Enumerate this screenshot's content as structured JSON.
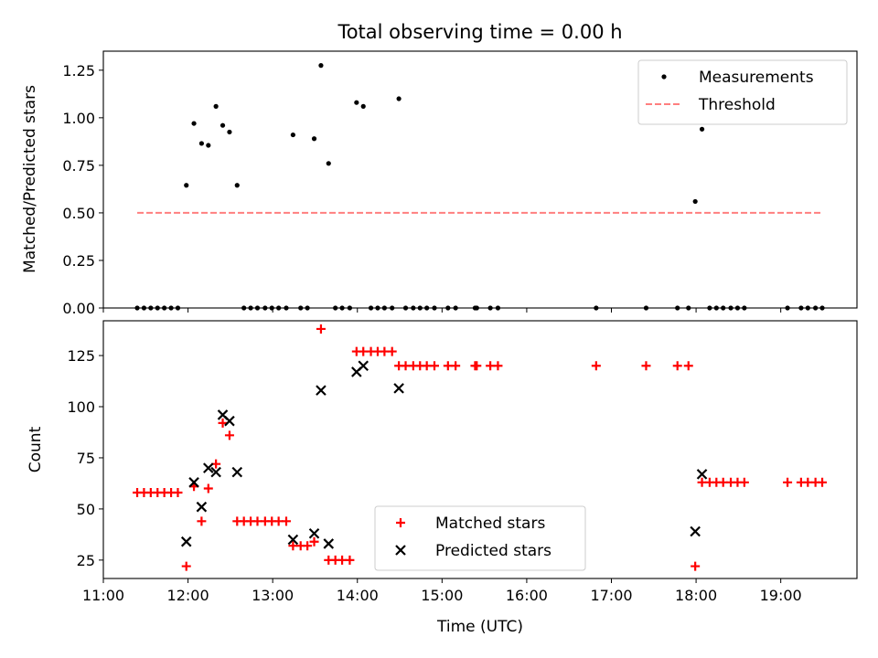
{
  "chart_data": [
    {
      "type": "scatter",
      "title": "Total observing time = 0.00 h",
      "xlabel": "",
      "ylabel": "Matched/Predicted stars",
      "xlim": [
        11.0,
        19.9
      ],
      "ylim": [
        0.0,
        1.35
      ],
      "yticks": [
        0.0,
        0.25,
        0.5,
        0.75,
        1.0,
        1.25
      ],
      "ytick_labels": [
        "0.00",
        "0.25",
        "0.50",
        "0.75",
        "1.00",
        "1.25"
      ],
      "legend_position": "top-right",
      "series": [
        {
          "name": "Measurements",
          "color": "#000000",
          "marker": "dot",
          "points": [
            [
              11.4,
              0
            ],
            [
              11.48,
              0
            ],
            [
              11.56,
              0
            ],
            [
              11.64,
              0
            ],
            [
              11.72,
              0
            ],
            [
              11.8,
              0
            ],
            [
              11.88,
              0
            ],
            [
              11.98,
              0.645
            ],
            [
              12.07,
              0.97
            ],
            [
              12.16,
              0.865
            ],
            [
              12.24,
              0.855
            ],
            [
              12.33,
              1.06
            ],
            [
              12.41,
              0.96
            ],
            [
              12.49,
              0.925
            ],
            [
              12.58,
              0.645
            ],
            [
              12.66,
              0
            ],
            [
              12.74,
              0
            ],
            [
              12.82,
              0
            ],
            [
              12.91,
              0
            ],
            [
              12.99,
              0
            ],
            [
              13.07,
              0
            ],
            [
              13.16,
              0
            ],
            [
              13.24,
              0.91
            ],
            [
              13.33,
              0
            ],
            [
              13.41,
              0
            ],
            [
              13.49,
              0.89
            ],
            [
              13.57,
              1.275
            ],
            [
              13.66,
              0.76
            ],
            [
              13.74,
              0
            ],
            [
              13.82,
              0
            ],
            [
              13.91,
              0
            ],
            [
              13.99,
              1.08
            ],
            [
              14.07,
              1.06
            ],
            [
              14.16,
              0
            ],
            [
              14.24,
              0
            ],
            [
              14.32,
              0
            ],
            [
              14.41,
              0
            ],
            [
              14.49,
              1.1
            ],
            [
              14.57,
              0
            ],
            [
              14.66,
              0
            ],
            [
              14.74,
              0
            ],
            [
              14.82,
              0
            ],
            [
              14.91,
              0
            ],
            [
              15.07,
              0
            ],
            [
              15.16,
              0
            ],
            [
              15.39,
              0
            ],
            [
              15.41,
              0
            ],
            [
              15.57,
              0
            ],
            [
              15.66,
              0
            ],
            [
              16.82,
              0
            ],
            [
              17.41,
              0
            ],
            [
              17.78,
              0
            ],
            [
              17.91,
              0
            ],
            [
              17.99,
              0.56
            ],
            [
              18.07,
              0.94
            ],
            [
              18.16,
              0
            ],
            [
              18.24,
              0
            ],
            [
              18.32,
              0
            ],
            [
              18.41,
              0
            ],
            [
              18.49,
              0
            ],
            [
              18.57,
              0
            ],
            [
              19.08,
              0
            ],
            [
              19.24,
              0
            ],
            [
              19.32,
              0
            ],
            [
              19.41,
              0
            ],
            [
              19.49,
              0
            ]
          ]
        },
        {
          "name": "Threshold",
          "color": "#ff7f7f",
          "style": "dashed",
          "points": [
            [
              11.4,
              0.5
            ],
            [
              19.5,
              0.5
            ]
          ]
        }
      ]
    },
    {
      "type": "scatter",
      "title": "",
      "xlabel": "Time (UTC)",
      "ylabel": "Count",
      "xlim": [
        11.0,
        19.9
      ],
      "ylim": [
        16,
        142
      ],
      "yticks": [
        25,
        50,
        75,
        100,
        125
      ],
      "ytick_labels": [
        "25",
        "50",
        "75",
        "100",
        "125"
      ],
      "xticks": [
        11,
        12,
        13,
        14,
        15,
        16,
        17,
        18,
        19
      ],
      "xtick_labels": [
        "11:00",
        "12:00",
        "13:00",
        "14:00",
        "15:00",
        "16:00",
        "17:00",
        "18:00",
        "19:00"
      ],
      "legend_position": "lower-center",
      "series": [
        {
          "name": "Matched stars",
          "color": "#ff0000",
          "marker": "plus",
          "points": [
            [
              11.4,
              58
            ],
            [
              11.48,
              58
            ],
            [
              11.56,
              58
            ],
            [
              11.64,
              58
            ],
            [
              11.72,
              58
            ],
            [
              11.8,
              58
            ],
            [
              11.88,
              58
            ],
            [
              11.98,
              22
            ],
            [
              12.07,
              61
            ],
            [
              12.16,
              44
            ],
            [
              12.24,
              60
            ],
            [
              12.33,
              72
            ],
            [
              12.41,
              92
            ],
            [
              12.49,
              86
            ],
            [
              12.58,
              44
            ],
            [
              12.66,
              44
            ],
            [
              12.74,
              44
            ],
            [
              12.82,
              44
            ],
            [
              12.91,
              44
            ],
            [
              12.99,
              44
            ],
            [
              13.07,
              44
            ],
            [
              13.16,
              44
            ],
            [
              13.24,
              32
            ],
            [
              13.33,
              32
            ],
            [
              13.41,
              32
            ],
            [
              13.49,
              34
            ],
            [
              13.57,
              138
            ],
            [
              13.66,
              25
            ],
            [
              13.74,
              25
            ],
            [
              13.82,
              25
            ],
            [
              13.91,
              25
            ],
            [
              13.99,
              127
            ],
            [
              14.07,
              127
            ],
            [
              14.16,
              127
            ],
            [
              14.24,
              127
            ],
            [
              14.32,
              127
            ],
            [
              14.41,
              127
            ],
            [
              14.49,
              120
            ],
            [
              14.57,
              120
            ],
            [
              14.66,
              120
            ],
            [
              14.74,
              120
            ],
            [
              14.82,
              120
            ],
            [
              14.91,
              120
            ],
            [
              15.07,
              120
            ],
            [
              15.16,
              120
            ],
            [
              15.39,
              120
            ],
            [
              15.41,
              120
            ],
            [
              15.57,
              120
            ],
            [
              15.66,
              120
            ],
            [
              16.82,
              120
            ],
            [
              17.41,
              120
            ],
            [
              17.78,
              120
            ],
            [
              17.91,
              120
            ],
            [
              17.99,
              22
            ],
            [
              18.07,
              63
            ],
            [
              18.16,
              63
            ],
            [
              18.24,
              63
            ],
            [
              18.32,
              63
            ],
            [
              18.41,
              63
            ],
            [
              18.49,
              63
            ],
            [
              18.57,
              63
            ],
            [
              19.08,
              63
            ],
            [
              19.24,
              63
            ],
            [
              19.32,
              63
            ],
            [
              19.41,
              63
            ],
            [
              19.49,
              63
            ]
          ]
        },
        {
          "name": "Predicted stars",
          "color": "#000000",
          "marker": "x",
          "points": [
            [
              11.98,
              34
            ],
            [
              12.07,
              63
            ],
            [
              12.16,
              51
            ],
            [
              12.24,
              70
            ],
            [
              12.33,
              68
            ],
            [
              12.41,
              96
            ],
            [
              12.49,
              93
            ],
            [
              12.58,
              68
            ],
            [
              13.24,
              35
            ],
            [
              13.49,
              38
            ],
            [
              13.57,
              108
            ],
            [
              13.66,
              33
            ],
            [
              13.99,
              117
            ],
            [
              14.07,
              120
            ],
            [
              14.49,
              109
            ],
            [
              17.99,
              39
            ],
            [
              18.07,
              67
            ]
          ]
        }
      ]
    }
  ]
}
